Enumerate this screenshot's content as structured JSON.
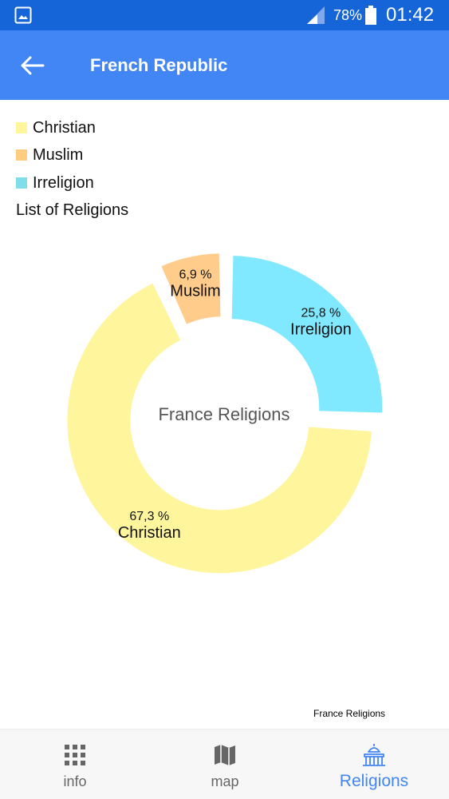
{
  "status_bar": {
    "battery_percent": "78%",
    "time": "01:42",
    "icons": [
      "gallery-icon",
      "signal-icon",
      "battery-icon"
    ]
  },
  "app_bar": {
    "title": "French Republic",
    "back_icon": "arrow-left-icon"
  },
  "legend": {
    "items": [
      {
        "label": "Christian",
        "color": "#fff59d"
      },
      {
        "label": "Muslim",
        "color": "#ffcc80"
      },
      {
        "label": "Irreligion",
        "color": "#80deea"
      }
    ],
    "list_title": "List of Religions"
  },
  "chart_data": {
    "type": "pie",
    "style": "donut",
    "center_text": "France Religions",
    "description": "France Religions",
    "slices": [
      {
        "label": "Irreligion",
        "value": 25.8,
        "value_text": "25,8 %",
        "color": "#80e8ff"
      },
      {
        "label": "Christian",
        "value": 67.3,
        "value_text": "67,3 %",
        "color": "#fff59d"
      },
      {
        "label": "Muslim",
        "value": 6.9,
        "value_text": "6,9 %",
        "color": "#ffcc8b"
      }
    ]
  },
  "bottom_nav": {
    "items": [
      {
        "label": "info",
        "icon": "grid-icon",
        "active": false
      },
      {
        "label": "map",
        "icon": "map-icon",
        "active": false
      },
      {
        "label": "Religions",
        "icon": "temple-icon",
        "active": true
      }
    ],
    "active_color": "#4285f4",
    "inactive_color": "#666666"
  }
}
